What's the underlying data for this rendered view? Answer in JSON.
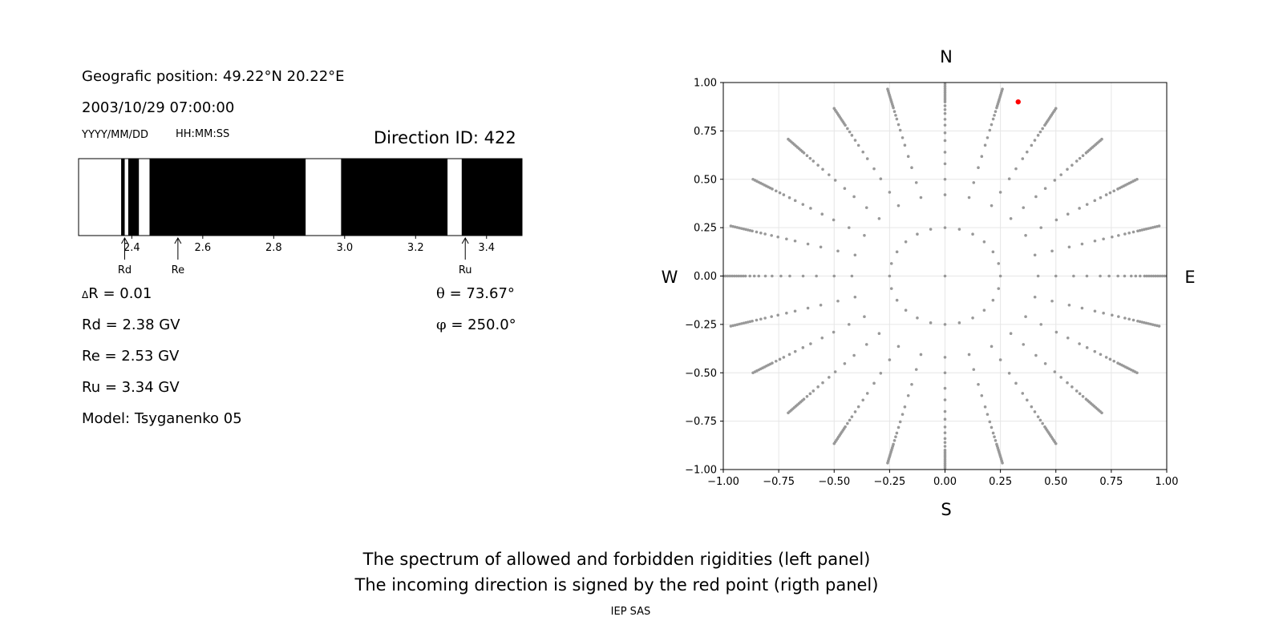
{
  "left_panel": {
    "geo_position": "Geografic position: 49.22°N 20.22°E",
    "datetime": "2003/10/29 07:00:00",
    "date_format": "YYYY/MM/DD",
    "time_format": "HH:MM:SS",
    "direction_id": "Direction ID: 422",
    "delta_r_symbol": "Δ",
    "delta_r_value": "R = 0.01",
    "theta_symbol": "θ",
    "theta_value": " = 73.67°",
    "phi_symbol": "φ",
    "phi_value": " = 250.0°",
    "rd": "Rd = 2.38 GV",
    "re": "Re = 2.53 GV",
    "ru": "Ru = 3.34 GV",
    "model": "Model: Tsyganenko 05"
  },
  "right_panel": {
    "north": "N",
    "south": "S",
    "west": "W",
    "east": "E"
  },
  "caption": {
    "line1": "The spectrum of allowed and forbidden rigidities (left panel)",
    "line2": "The incoming direction is signed by the red point (rigth panel)",
    "credit": "IEP SAS"
  },
  "colors": {
    "forbidden": "#000000",
    "allowed": "#ffffff",
    "grid_point": "#999999",
    "incoming_point": "#ff0000"
  },
  "chart_data": [
    {
      "type": "bar",
      "description_of_encoding": "rigidity spectrum: black = forbidden, white = allowed",
      "xlim": [
        2.25,
        3.5
      ],
      "xticks": [
        2.4,
        2.6,
        2.8,
        3.0,
        3.2,
        3.4
      ],
      "forbidden_intervals": [
        [
          2.37,
          2.38
        ],
        [
          2.39,
          2.42
        ],
        [
          2.45,
          2.89
        ],
        [
          2.99,
          3.29
        ],
        [
          3.33,
          3.5
        ]
      ],
      "markers": [
        {
          "label": "Rd",
          "value": 2.38
        },
        {
          "label": "Re",
          "value": 2.53
        },
        {
          "label": "Ru",
          "value": 3.34
        }
      ]
    },
    {
      "type": "scatter",
      "xlim": [
        -1.0,
        1.0
      ],
      "ylim": [
        -1.0,
        1.0
      ],
      "xticks": [
        -1.0,
        -0.75,
        -0.5,
        -0.25,
        0.0,
        0.25,
        0.5,
        0.75,
        1.0
      ],
      "yticks": [
        1.0,
        0.75,
        0.5,
        0.25,
        0.0,
        -0.25,
        -0.5,
        -0.75,
        -1.0
      ],
      "xtick_labels": [
        "−1.00",
        "−0.75",
        "−0.50",
        "−0.25",
        "0.00",
        "0.25",
        "0.50",
        "0.75",
        "1.00"
      ],
      "ytick_labels": [
        "1.00",
        "0.75",
        "0.50",
        "0.25",
        "0.00",
        "−0.25",
        "−0.50",
        "−0.75",
        "−1.00"
      ],
      "grid": true,
      "direction_grid": {
        "azimuth_step_deg": 15,
        "rings": [
          0.25,
          0.42,
          0.5,
          0.58,
          0.64,
          0.7,
          0.74,
          0.78,
          0.81,
          0.84,
          0.86,
          0.88,
          0.9,
          0.91,
          0.92,
          0.93,
          0.94,
          0.95,
          0.96,
          0.97,
          0.98,
          0.99,
          1.0
        ],
        "center": [
          0.0,
          0.0
        ]
      },
      "highlight_point": {
        "x": 0.33,
        "y": 0.9
      }
    }
  ]
}
